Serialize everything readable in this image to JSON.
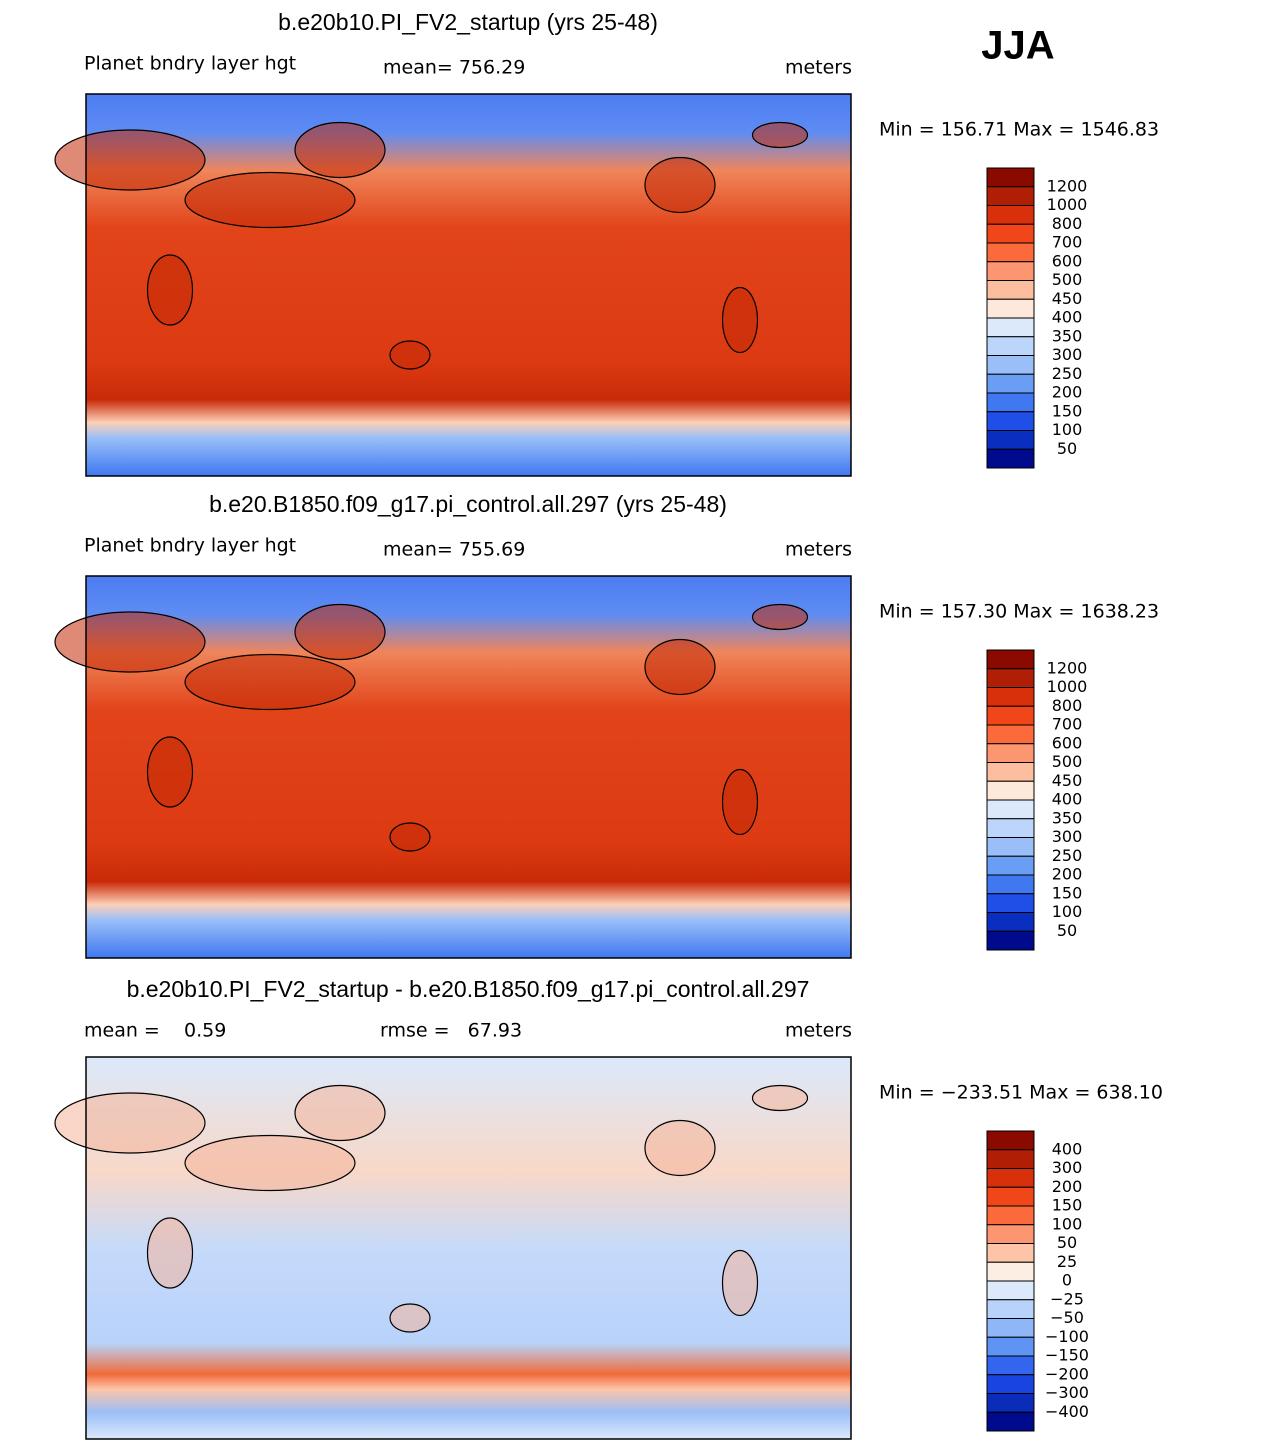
{
  "header": {
    "season": "JJA"
  },
  "panels": [
    {
      "title": "b.e20b10.PI_FV2_startup (yrs 25-48)",
      "variable": "Planet bndry layer hgt",
      "stats": [
        "mean= 756.29"
      ],
      "units": "meters",
      "range": "Min = 156.71 Max = 1546.83",
      "levels": [
        "1200",
        "1000",
        "800",
        "700",
        "600",
        "500",
        "450",
        "400",
        "350",
        "300",
        "250",
        "200",
        "150",
        "100",
        "50"
      ],
      "colors": [
        "#8b0a00",
        "#b01f05",
        "#d9300c",
        "#f0461a",
        "#fb6a3a",
        "#fc9670",
        "#fdbea0",
        "#fde8da",
        "#dbe9fb",
        "#bcd5fa",
        "#9abff8",
        "#6a9ef5",
        "#3f78f0",
        "#1f4fe6",
        "#0a2fc0",
        "#000a8c"
      ]
    },
    {
      "title": "b.e20.B1850.f09_g17.pi_control.all.297 (yrs 25-48)",
      "variable": "Planet bndry layer hgt",
      "stats": [
        "mean= 755.69"
      ],
      "units": "meters",
      "range": "Min = 157.30 Max = 1638.23",
      "levels": [
        "1200",
        "1000",
        "800",
        "700",
        "600",
        "500",
        "450",
        "400",
        "350",
        "300",
        "250",
        "200",
        "150",
        "100",
        "50"
      ],
      "colors": [
        "#8b0a00",
        "#b01f05",
        "#d9300c",
        "#f0461a",
        "#fb6a3a",
        "#fc9670",
        "#fdbea0",
        "#fde8da",
        "#dbe9fb",
        "#bcd5fa",
        "#9abff8",
        "#6a9ef5",
        "#3f78f0",
        "#1f4fe6",
        "#0a2fc0",
        "#000a8c"
      ]
    },
    {
      "title": "b.e20b10.PI_FV2_startup - b.e20.B1850.f09_g17.pi_control.all.297",
      "stats": [
        "mean =    0.59",
        "rmse =   67.93"
      ],
      "units": "meters",
      "range": "Min = −233.51 Max = 638.10",
      "levels": [
        "400",
        "300",
        "200",
        "150",
        "100",
        "50",
        "25",
        "0",
        "−25",
        "−50",
        "−100",
        "−150",
        "−200",
        "−300",
        "−400"
      ],
      "colors": [
        "#8b0a00",
        "#b01f05",
        "#d9300c",
        "#f0461a",
        "#fb6a3a",
        "#fc9670",
        "#fdc4a8",
        "#fdeee3",
        "#dbe9fb",
        "#b8d2fa",
        "#8fb6f7",
        "#5f93f4",
        "#3366ee",
        "#1a44e0",
        "#0a2cb8",
        "#000a8c"
      ]
    }
  ]
}
